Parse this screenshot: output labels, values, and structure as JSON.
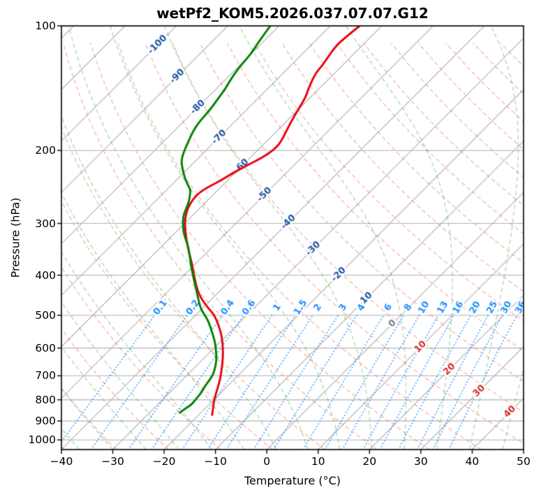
{
  "title": "wetPf2_KOM5.2026.037.07.07.G12",
  "chart_data": {
    "type": "line",
    "chart_kind": "skew-t-log-p-sounding",
    "title": "wetPf2_KOM5.2026.037.07.07.G12",
    "xlabel": "Temperature (°C)",
    "ylabel": "Pressure (hPa)",
    "xlim": [
      -40,
      50
    ],
    "plim": [
      100,
      1055
    ],
    "skew_deg": 45,
    "grid": true,
    "x_ticks": [
      -40,
      -30,
      -20,
      -10,
      0,
      10,
      20,
      30,
      40,
      50
    ],
    "p_ticks": [
      100,
      200,
      300,
      400,
      500,
      600,
      700,
      800,
      900,
      1000
    ],
    "isotherms": {
      "start": -120,
      "end": 50,
      "step": 10
    },
    "isotherm_labels": [
      -100,
      -90,
      -80,
      -70,
      -60,
      -50,
      -40,
      -30,
      -20,
      -10,
      0,
      10,
      20,
      30,
      40
    ],
    "dry_adiabats": {
      "theta_start_c": -43,
      "theta_end_c": 197,
      "step_k": 10
    },
    "moist_adiabats": {
      "thetaw_start_c": -40,
      "thetaw_end_c": 44.6,
      "step_k": 6.5
    },
    "mixing_ratio_g_kg": [
      0.1,
      0.2,
      0.4,
      0.6,
      1,
      1.5,
      2,
      3,
      4,
      6,
      8,
      10,
      13,
      16,
      20,
      25,
      30,
      36
    ],
    "mixing_ratio_top_hpa": 500,
    "series": [
      {
        "name": "temperature",
        "color": "#e8000d",
        "points": [
          [
            100,
            -64.3
          ],
          [
            108,
            -65.0
          ],
          [
            114,
            -64.9
          ],
          [
            124,
            -63.9
          ],
          [
            130,
            -63.7
          ],
          [
            141,
            -62.2
          ],
          [
            149,
            -60.9
          ],
          [
            158,
            -60.1
          ],
          [
            172,
            -58.9
          ],
          [
            191,
            -57.0
          ],
          [
            200,
            -56.9
          ],
          [
            209,
            -57.8
          ],
          [
            218,
            -59.2
          ],
          [
            227,
            -60.4
          ],
          [
            238,
            -61.5
          ],
          [
            248,
            -62.8
          ],
          [
            257,
            -63.2
          ],
          [
            270,
            -62.7
          ],
          [
            281,
            -61.9
          ],
          [
            300,
            -60.0
          ],
          [
            329,
            -56.4
          ],
          [
            355,
            -53.2
          ],
          [
            377,
            -50.5
          ],
          [
            403,
            -47.8
          ],
          [
            445,
            -43.5
          ],
          [
            480,
            -39.0
          ],
          [
            498,
            -36.5
          ],
          [
            528,
            -33.6
          ],
          [
            559,
            -31.0
          ],
          [
            598,
            -28.4
          ],
          [
            633,
            -26.4
          ],
          [
            671,
            -24.6
          ],
          [
            705,
            -23.1
          ],
          [
            741,
            -21.8
          ],
          [
            776,
            -20.7
          ],
          [
            800,
            -19.9
          ],
          [
            822,
            -19.1
          ],
          [
            847,
            -18.2
          ],
          [
            870,
            -17.4
          ]
        ]
      },
      {
        "name": "dewpoint",
        "color": "#007f00",
        "points": [
          [
            100,
            -81.7
          ],
          [
            109,
            -80.9
          ],
          [
            117,
            -80.0
          ],
          [
            124,
            -79.8
          ],
          [
            133,
            -79.2
          ],
          [
            142,
            -78.2
          ],
          [
            149,
            -77.8
          ],
          [
            158,
            -77.2
          ],
          [
            165,
            -77.0
          ],
          [
            172,
            -76.8
          ],
          [
            179,
            -76.3
          ],
          [
            186,
            -75.6
          ],
          [
            194,
            -74.8
          ],
          [
            201,
            -74.1
          ],
          [
            212,
            -72.8
          ],
          [
            223,
            -70.7
          ],
          [
            235,
            -68.4
          ],
          [
            246,
            -66.0
          ],
          [
            250,
            -65.2
          ],
          [
            267,
            -63.2
          ],
          [
            286,
            -61.9
          ],
          [
            300,
            -60.3
          ],
          [
            316,
            -58.4
          ],
          [
            333,
            -55.9
          ],
          [
            350,
            -53.7
          ],
          [
            377,
            -50.8
          ],
          [
            402,
            -48.1
          ],
          [
            435,
            -44.7
          ],
          [
            480,
            -40.5
          ],
          [
            498,
            -38.4
          ],
          [
            517,
            -36.3
          ],
          [
            548,
            -33.6
          ],
          [
            580,
            -31.0
          ],
          [
            606,
            -29.3
          ],
          [
            641,
            -27.2
          ],
          [
            681,
            -25.5
          ],
          [
            706,
            -24.8
          ],
          [
            741,
            -24.4
          ],
          [
            770,
            -23.8
          ],
          [
            798,
            -23.6
          ],
          [
            822,
            -23.4
          ],
          [
            838,
            -23.8
          ],
          [
            860,
            -24.1
          ]
        ]
      }
    ],
    "colors": {
      "pressure_grid": "#b2b2b2",
      "isotherm": "#b2b2b2",
      "dry_adiabat": "rgba(235,80,50,0.42)",
      "moist_adiabat": "rgba(56,150,60,0.40)",
      "mixing_ratio": "rgba(30,144,255,0.85)",
      "isotherm_label_negative": "#2355a5",
      "isotherm_label_zero": "#808080",
      "isotherm_label_positive": "#d22d2d",
      "mixing_ratio_label": "#1e90ff",
      "spine": "#000000"
    }
  }
}
